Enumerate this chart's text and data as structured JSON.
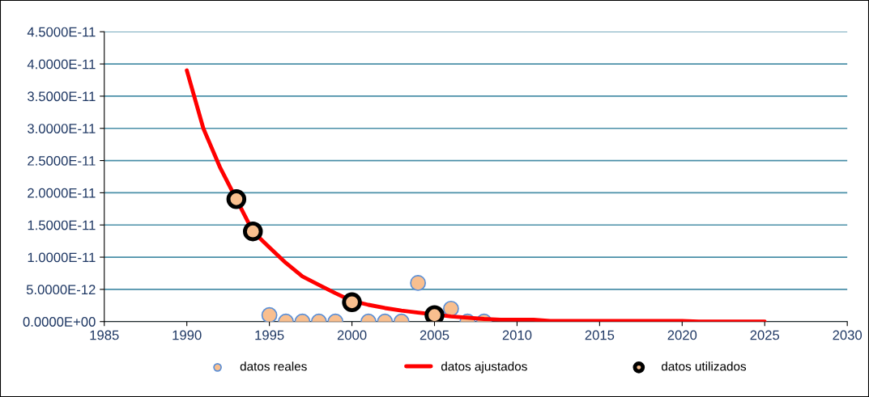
{
  "chart_data": {
    "type": "scatter",
    "xlim": [
      1985,
      2030
    ],
    "xticks": [
      1985,
      1990,
      1995,
      2000,
      2005,
      2010,
      2015,
      2020,
      2025,
      2030
    ],
    "ylim": [
      0,
      4.5e-11
    ],
    "yticks": [
      {
        "value": 0,
        "label": "0.0000E+00"
      },
      {
        "value": 5e-12,
        "label": "5.0000E-12"
      },
      {
        "value": 1e-11,
        "label": "1.0000E-11"
      },
      {
        "value": 1.5e-11,
        "label": "1.5000E-11"
      },
      {
        "value": 2e-11,
        "label": "2.0000E-11"
      },
      {
        "value": 2.5e-11,
        "label": "2.5000E-11"
      },
      {
        "value": 3e-11,
        "label": "3.0000E-11"
      },
      {
        "value": 3.5e-11,
        "label": "3.5000E-11"
      },
      {
        "value": 4e-11,
        "label": "4.0000E-11"
      },
      {
        "value": 4.5e-11,
        "label": "4.5000E-11"
      }
    ],
    "grid": "y",
    "legend": "bottom",
    "series": [
      {
        "name": "datos reales",
        "marker": "circle",
        "color": "#f9bf8f",
        "x": [
          1995,
          1996,
          1997,
          1998,
          1999,
          2001,
          2002,
          2003,
          2004,
          2006,
          2007,
          2008
        ],
        "values": [
          1e-12,
          0,
          0,
          0,
          0,
          0,
          0,
          0,
          6e-12,
          2e-12,
          0,
          0
        ]
      },
      {
        "name": "datos ajustados",
        "type": "line",
        "marker": "none",
        "line_style": "solid",
        "color": "#ff0000",
        "x": [
          1990,
          1991,
          1992,
          1993,
          1994,
          1995,
          1996,
          1997,
          1998,
          1999,
          2000,
          2001,
          2002,
          2003,
          2004,
          2005,
          2006,
          2007,
          2008,
          2009,
          2010,
          2011,
          2012,
          2015,
          2020,
          2021,
          2025
        ],
        "values": [
          3.9e-11,
          3e-11,
          2.4e-11,
          1.9e-11,
          1.4e-11,
          1.15e-11,
          9.1e-12,
          7e-12,
          5.7e-12,
          4.4e-12,
          3.2e-12,
          2.6e-12,
          2.1e-12,
          1.7e-12,
          1.4e-12,
          1.1e-12,
          8e-13,
          6e-13,
          4e-13,
          3e-13,
          3e-13,
          3e-13,
          1e-13,
          1e-13,
          1e-13,
          0,
          0
        ]
      },
      {
        "name": "datos utilizados",
        "marker": "circle",
        "color": "#000000",
        "x": [
          1993,
          1994,
          2000,
          2005
        ],
        "values": [
          1.9e-11,
          1.4e-11,
          3e-12,
          1e-12
        ]
      }
    ]
  }
}
